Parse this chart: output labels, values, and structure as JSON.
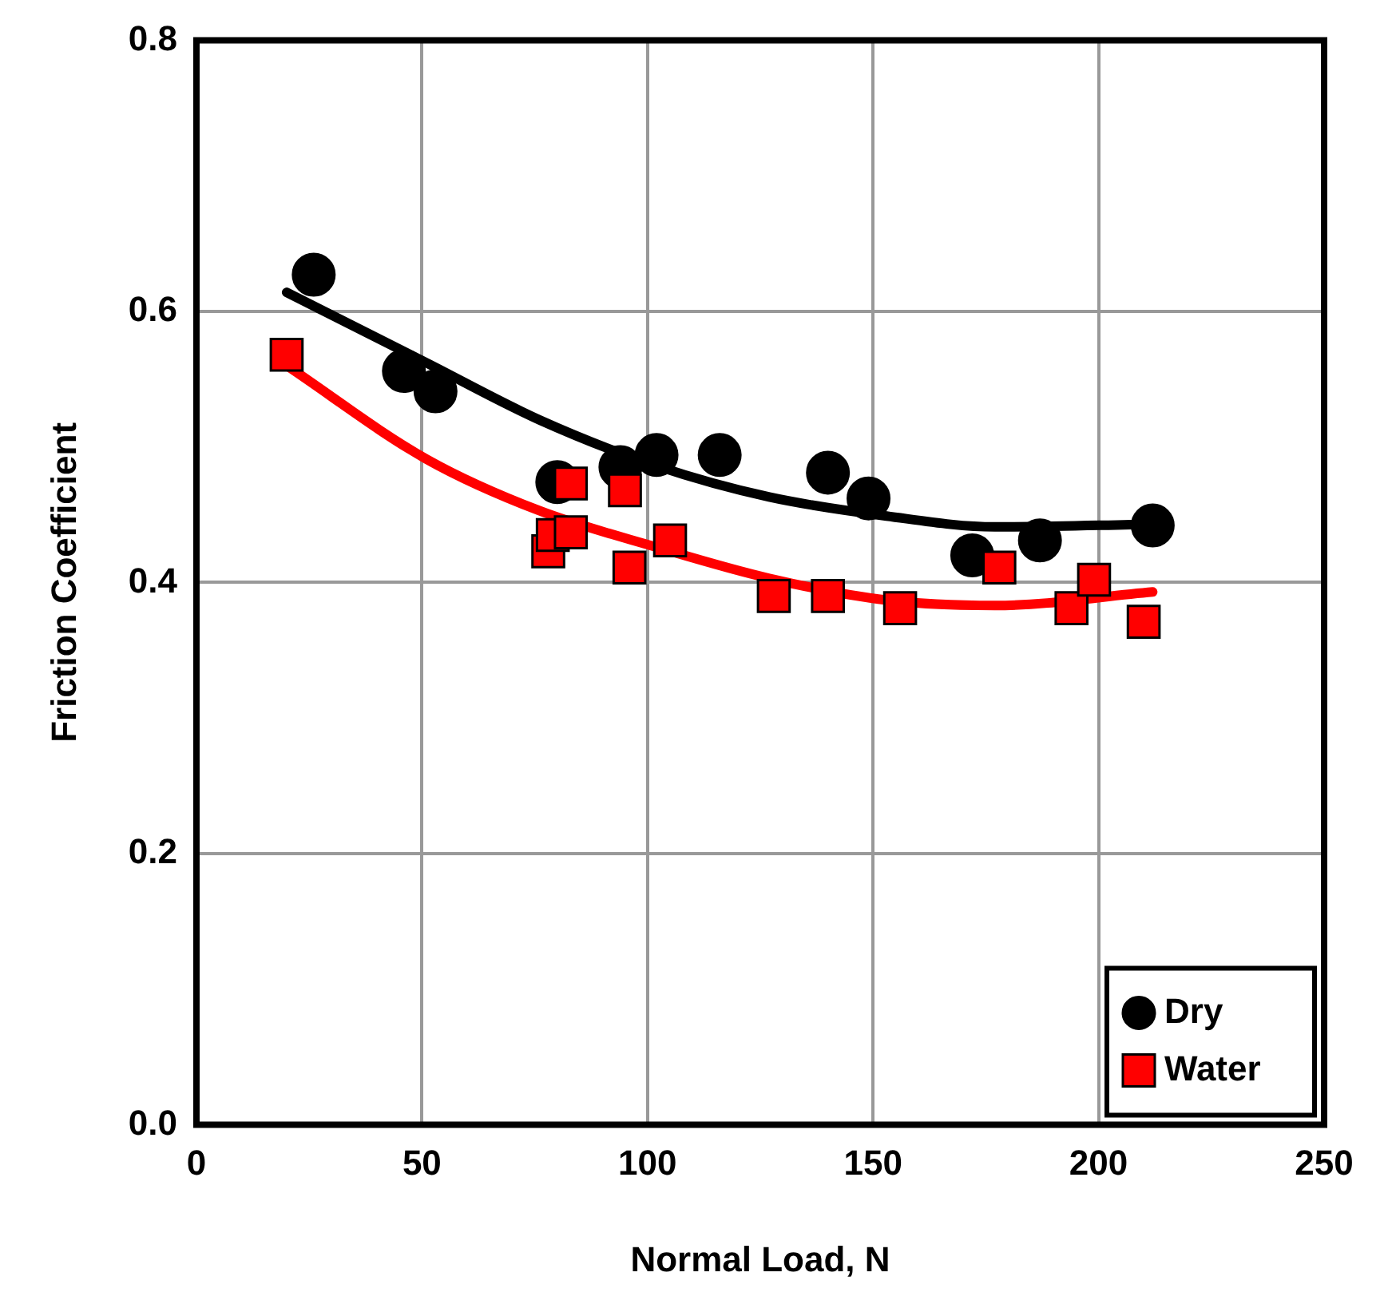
{
  "chart_data": {
    "type": "scatter",
    "xlabel": "Normal Load, N",
    "ylabel": "Friction Coefficient",
    "xlim": [
      0,
      250
    ],
    "xticks": [
      0,
      50,
      100,
      150,
      200,
      250
    ],
    "ylim": [
      0,
      0.8
    ],
    "yticks": [
      {
        "value": 0,
        "label": "0.0"
      },
      0.2,
      0.4,
      0.6,
      0.8
    ],
    "grid": true,
    "legend": "bottom right",
    "series": [
      {
        "name": "Dry",
        "color": "#000000",
        "marker": "circle",
        "x": [
          26,
          46,
          53,
          80,
          94,
          102,
          116,
          140,
          149,
          172,
          187,
          212
        ],
        "values": [
          0.627,
          0.556,
          0.541,
          0.474,
          0.485,
          0.494,
          0.494,
          0.481,
          0.462,
          0.42,
          0.431,
          0.442
        ]
      },
      {
        "name": "Water",
        "color": "#ff0000",
        "marker": "square",
        "x": [
          20,
          78,
          79,
          83,
          83,
          96,
          95,
          105,
          128,
          140,
          156,
          178,
          194,
          199,
          210
        ],
        "values": [
          0.568,
          0.423,
          0.435,
          0.437,
          0.473,
          0.411,
          0.468,
          0.431,
          0.39,
          0.39,
          0.381,
          0.411,
          0.381,
          0.402,
          0.371
        ]
      },
      {
        "type": "line",
        "color": "#000000",
        "marker": "none",
        "x": [
          20,
          51,
          76,
          102,
          127,
          153,
          177,
          212
        ],
        "values": [
          0.614,
          0.562,
          0.52,
          0.486,
          0.463,
          0.449,
          0.441,
          0.443
        ]
      },
      {
        "type": "line",
        "color": "#ff0000",
        "marker": "none",
        "x": [
          20,
          51,
          76,
          102,
          127,
          153,
          177,
          212
        ],
        "values": [
          0.56,
          0.491,
          0.453,
          0.426,
          0.403,
          0.387,
          0.383,
          0.393
        ]
      }
    ]
  }
}
